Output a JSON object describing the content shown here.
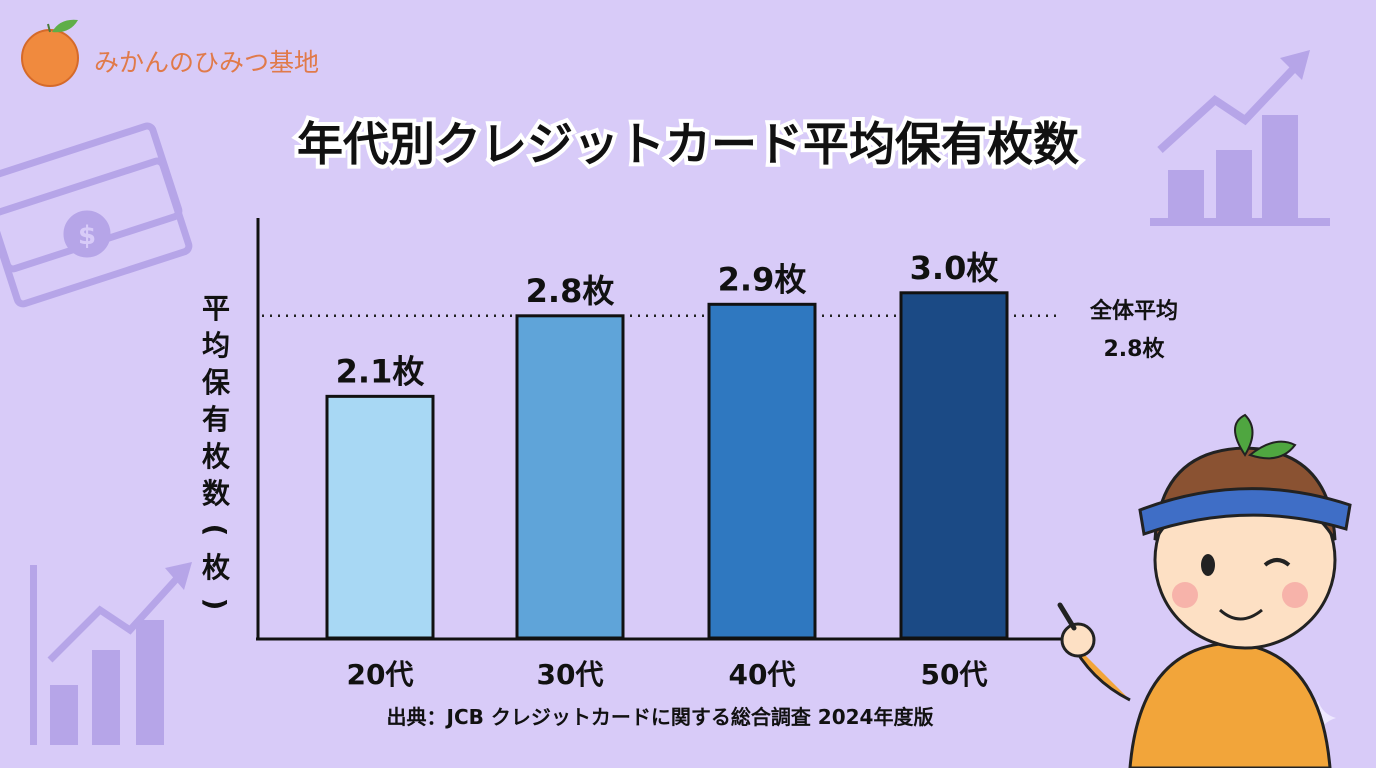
{
  "brand": {
    "name": "みかんのひみつ基地",
    "color": "#e07a4a",
    "icon": "mandarin-orange-icon"
  },
  "chart_data": {
    "type": "bar",
    "title": "年代別クレジットカード平均保有枚数",
    "ylabel": "平均保有枚数(枚)",
    "xlabel": "",
    "categories": [
      "20代",
      "30代",
      "40代",
      "50代"
    ],
    "values": [
      2.1,
      2.8,
      2.9,
      3.0
    ],
    "data_labels": [
      "2.1枚",
      "2.8枚",
      "2.9枚",
      "3.0枚"
    ],
    "colors": [
      "#a8d8f4",
      "#5fa4d9",
      "#2f78c0",
      "#1b4a85"
    ],
    "ylim": [
      0,
      3.65
    ],
    "grid": false,
    "reference_line": {
      "label_line1": "全体平均",
      "label_line2": "2.8枚",
      "value": 2.8,
      "style": "dotted"
    },
    "source": "出典：JCB クレジットカードに関する総合調査 2024年度版"
  },
  "decorations": [
    "money-bills-icon",
    "bar-chart-up-icon",
    "boy-character-pointing",
    "sparkle-icon"
  ],
  "colors": {
    "background": "#d8cbf8",
    "decor": "#b6a5e8"
  }
}
